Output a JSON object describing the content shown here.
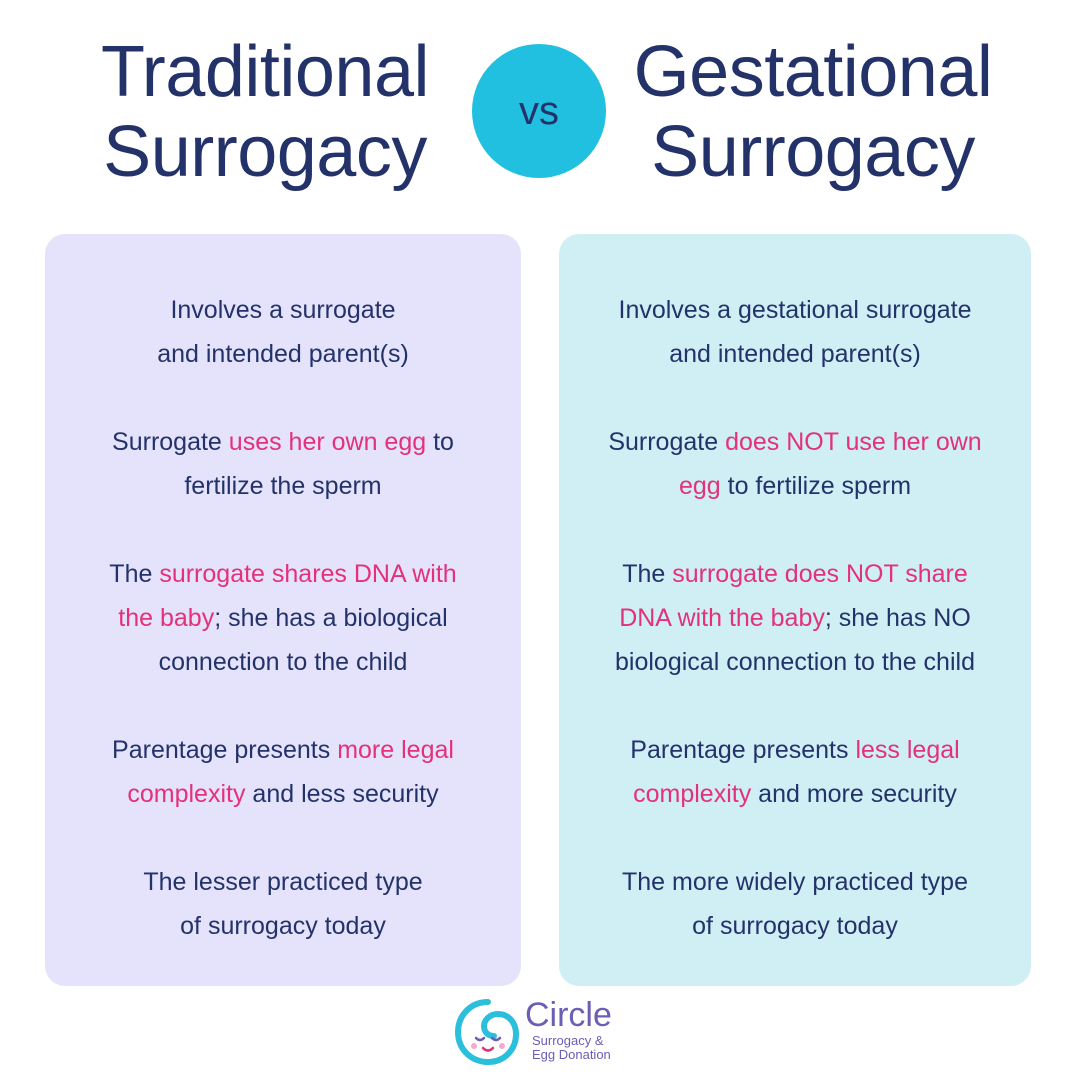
{
  "titles": {
    "left": [
      "Traditional",
      "Surrogacy"
    ],
    "vs": "vs",
    "right": [
      "Gestational",
      "Surrogacy"
    ]
  },
  "left_points": [
    {
      "lines": [
        [
          {
            "t": "Involves a surrogate"
          }
        ],
        [
          {
            "t": "and intended parent(s)"
          }
        ]
      ]
    },
    {
      "lines": [
        [
          {
            "t": "Surrogate "
          },
          {
            "t": "uses her own egg",
            "hl": true
          },
          {
            "t": " to"
          }
        ],
        [
          {
            "t": "fertilize the sperm"
          }
        ]
      ]
    },
    {
      "lines": [
        [
          {
            "t": "The "
          },
          {
            "t": "surrogate shares DNA with",
            "hl": true
          }
        ],
        [
          {
            "t": "the baby",
            "hl": true
          },
          {
            "t": "; she has a biological"
          }
        ],
        [
          {
            "t": "connection to the child"
          }
        ]
      ]
    },
    {
      "lines": [
        [
          {
            "t": "Parentage presents "
          },
          {
            "t": "more legal",
            "hl": true
          }
        ],
        [
          {
            "t": "complexity",
            "hl": true
          },
          {
            "t": " and less security"
          }
        ]
      ]
    },
    {
      "lines": [
        [
          {
            "t": "The lesser practiced type"
          }
        ],
        [
          {
            "t": "of surrogacy today"
          }
        ]
      ]
    }
  ],
  "right_points": [
    {
      "lines": [
        [
          {
            "t": "Involves a gestational surrogate"
          }
        ],
        [
          {
            "t": "and intended parent(s)"
          }
        ]
      ]
    },
    {
      "lines": [
        [
          {
            "t": "Surrogate "
          },
          {
            "t": "does NOT use her own",
            "hl": true
          }
        ],
        [
          {
            "t": "egg",
            "hl": true
          },
          {
            "t": " to fertilize sperm"
          }
        ]
      ]
    },
    {
      "lines": [
        [
          {
            "t": "The "
          },
          {
            "t": "surrogate does NOT share",
            "hl": true
          }
        ],
        [
          {
            "t": "DNA with the baby",
            "hl": true
          },
          {
            "t": "; she has NO"
          }
        ],
        [
          {
            "t": "biological connection to the child"
          }
        ]
      ]
    },
    {
      "lines": [
        [
          {
            "t": "Parentage presents "
          },
          {
            "t": "less legal",
            "hl": true
          }
        ],
        [
          {
            "t": "complexity",
            "hl": true
          },
          {
            "t": " and more security"
          }
        ]
      ]
    },
    {
      "lines": [
        [
          {
            "t": "The more widely practiced type"
          }
        ],
        [
          {
            "t": "of surrogacy today"
          }
        ]
      ]
    }
  ],
  "logo": {
    "name": "Circle",
    "sub": [
      "Surrogacy &",
      "Egg Donation"
    ],
    "icon": "baby-face-circle-icon"
  },
  "colors": {
    "navy": "#24326a",
    "accent_pink": "#e3317a",
    "vs_circle": "#22c0e0",
    "left_panel": "#e4e3fb",
    "right_panel": "#d0eff5",
    "logo_purple": "#6a5fb5"
  }
}
